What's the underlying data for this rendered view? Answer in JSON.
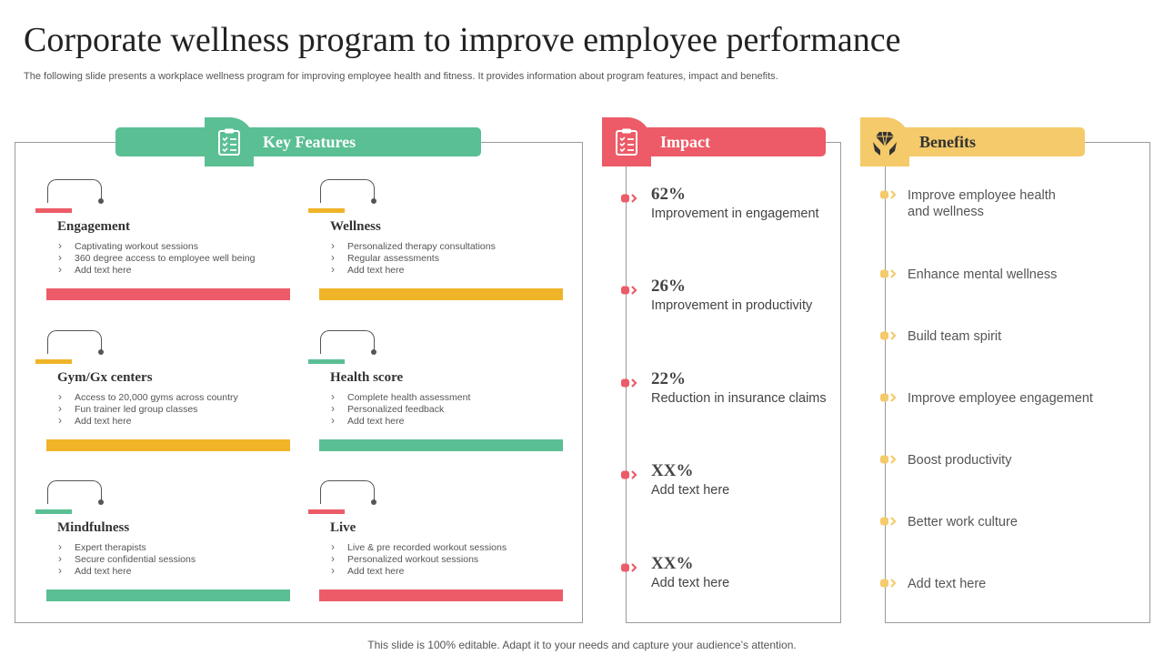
{
  "title": "Corporate wellness program to improve employee performance",
  "subtitle": "The following slide presents a workplace wellness program for improving employee health and fitness. It provides information about program features, impact and benefits.",
  "footer": "This slide is 100% editable. Adapt it to your needs and capture your audience’s attention.",
  "colors": {
    "green": "#5bbf94",
    "red": "#ec5b67",
    "yellow": "#f0b429",
    "benefit_yellow": "#f5ca6a"
  },
  "key_features": {
    "heading": "Key Features",
    "icon": "clipboard-checklist-icon",
    "cards": [
      {
        "title": "Engagement",
        "color": "red",
        "tab_color": "red",
        "items": [
          "Captivating workout sessions",
          "360 degree access to employee well being",
          "Add text here"
        ]
      },
      {
        "title": "Wellness",
        "color": "yellow",
        "tab_color": "yellow",
        "items": [
          "Personalized therapy consultations",
          "Regular assessments",
          "Add text here"
        ]
      },
      {
        "title": "Gym/Gx centers",
        "color": "yellow",
        "tab_color": "yellow",
        "items": [
          "Access to 20,000 gyms across country",
          "Fun trainer led group classes",
          "Add text here"
        ]
      },
      {
        "title": "Health score",
        "color": "green",
        "tab_color": "green",
        "items": [
          "Complete health assessment",
          "Personalized feedback",
          "Add text here"
        ]
      },
      {
        "title": "Mindfulness",
        "color": "green",
        "tab_color": "green",
        "items": [
          "Expert therapists",
          "Secure confidential sessions",
          "Add text here"
        ]
      },
      {
        "title": "Live",
        "color": "red",
        "tab_color": "red",
        "items": [
          "Live & pre recorded workout sessions",
          "Personalized workout sessions",
          "Add text here"
        ]
      }
    ]
  },
  "impact": {
    "heading": "Impact",
    "icon": "clipboard-checklist-icon",
    "items": [
      {
        "value": "62%",
        "label": "Improvement in engagement"
      },
      {
        "value": "26%",
        "label": "Improvement in productivity"
      },
      {
        "value": "22%",
        "label": "Reduction in insurance claims"
      },
      {
        "value": "XX%",
        "label": "Add text here"
      },
      {
        "value": "XX%",
        "label": "Add text here"
      }
    ]
  },
  "benefits": {
    "heading": "Benefits",
    "icon": "hands-diamond-icon",
    "items": [
      "Improve employee health and wellness",
      "Enhance mental wellness",
      "Build team spirit",
      "Improve employee engagement",
      "Boost productivity",
      "Better work culture",
      "Add text here"
    ]
  }
}
